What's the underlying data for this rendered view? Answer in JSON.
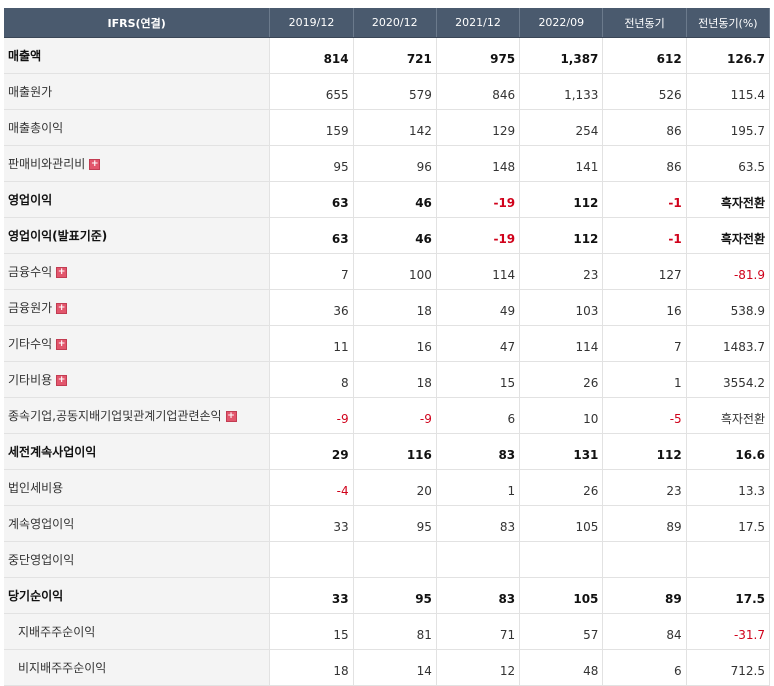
{
  "header": [
    "IFRS(연결)",
    "2019/12",
    "2020/12",
    "2021/12",
    "2022/09",
    "전년동기",
    "전년동기(%)"
  ],
  "rows": [
    {
      "label": "매출액",
      "bold": true,
      "expand": false,
      "indent": false,
      "values": [
        "814",
        "721",
        "975",
        "1,387",
        "612",
        "126.7"
      ]
    },
    {
      "label": "매출원가",
      "bold": false,
      "expand": false,
      "indent": false,
      "values": [
        "655",
        "579",
        "846",
        "1,133",
        "526",
        "115.4"
      ]
    },
    {
      "label": "매출총이익",
      "bold": false,
      "expand": false,
      "indent": false,
      "values": [
        "159",
        "142",
        "129",
        "254",
        "86",
        "195.7"
      ]
    },
    {
      "label": "판매비와관리비",
      "bold": false,
      "expand": true,
      "indent": false,
      "values": [
        "95",
        "96",
        "148",
        "141",
        "86",
        "63.5"
      ]
    },
    {
      "label": "영업이익",
      "bold": true,
      "expand": false,
      "indent": false,
      "values": [
        "63",
        "46",
        "-19",
        "112",
        "-1",
        "흑자전환"
      ]
    },
    {
      "label": "영업이익(발표기준)",
      "bold": true,
      "expand": false,
      "indent": false,
      "values": [
        "63",
        "46",
        "-19",
        "112",
        "-1",
        "흑자전환"
      ]
    },
    {
      "label": "금융수익",
      "bold": false,
      "expand": true,
      "indent": false,
      "values": [
        "7",
        "100",
        "114",
        "23",
        "127",
        "-81.9"
      ]
    },
    {
      "label": "금융원가",
      "bold": false,
      "expand": true,
      "indent": false,
      "values": [
        "36",
        "18",
        "49",
        "103",
        "16",
        "538.9"
      ]
    },
    {
      "label": "기타수익",
      "bold": false,
      "expand": true,
      "indent": false,
      "values": [
        "11",
        "16",
        "47",
        "114",
        "7",
        "1483.7"
      ]
    },
    {
      "label": "기타비용",
      "bold": false,
      "expand": true,
      "indent": false,
      "values": [
        "8",
        "18",
        "15",
        "26",
        "1",
        "3554.2"
      ]
    },
    {
      "label": "종속기업,공동지배기업및관계기업관련손익",
      "bold": false,
      "expand": true,
      "indent": false,
      "values": [
        "-9",
        "-9",
        "6",
        "10",
        "-5",
        "흑자전환"
      ]
    },
    {
      "label": "세전계속사업이익",
      "bold": true,
      "expand": false,
      "indent": false,
      "values": [
        "29",
        "116",
        "83",
        "131",
        "112",
        "16.6"
      ]
    },
    {
      "label": "법인세비용",
      "bold": false,
      "expand": false,
      "indent": false,
      "values": [
        "-4",
        "20",
        "1",
        "26",
        "23",
        "13.3"
      ]
    },
    {
      "label": "계속영업이익",
      "bold": false,
      "expand": false,
      "indent": false,
      "values": [
        "33",
        "95",
        "83",
        "105",
        "89",
        "17.5"
      ]
    },
    {
      "label": "중단영업이익",
      "bold": false,
      "expand": false,
      "indent": false,
      "values": [
        "",
        "",
        "",
        "",
        "",
        ""
      ]
    },
    {
      "label": "당기순이익",
      "bold": true,
      "expand": false,
      "indent": false,
      "values": [
        "33",
        "95",
        "83",
        "105",
        "89",
        "17.5"
      ]
    },
    {
      "label": "지배주주순이익",
      "bold": false,
      "expand": false,
      "indent": true,
      "values": [
        "15",
        "81",
        "71",
        "57",
        "84",
        "-31.7"
      ]
    },
    {
      "label": "비지배주주순이익",
      "bold": false,
      "expand": false,
      "indent": true,
      "values": [
        "18",
        "14",
        "12",
        "48",
        "6",
        "712.5"
      ]
    }
  ],
  "expand_icon": "plus-icon",
  "expand_glyph": "+",
  "colors": {
    "header_bg": "#4a5a6e",
    "negative": "#d0021b",
    "expand_icon": "#e2566c"
  }
}
